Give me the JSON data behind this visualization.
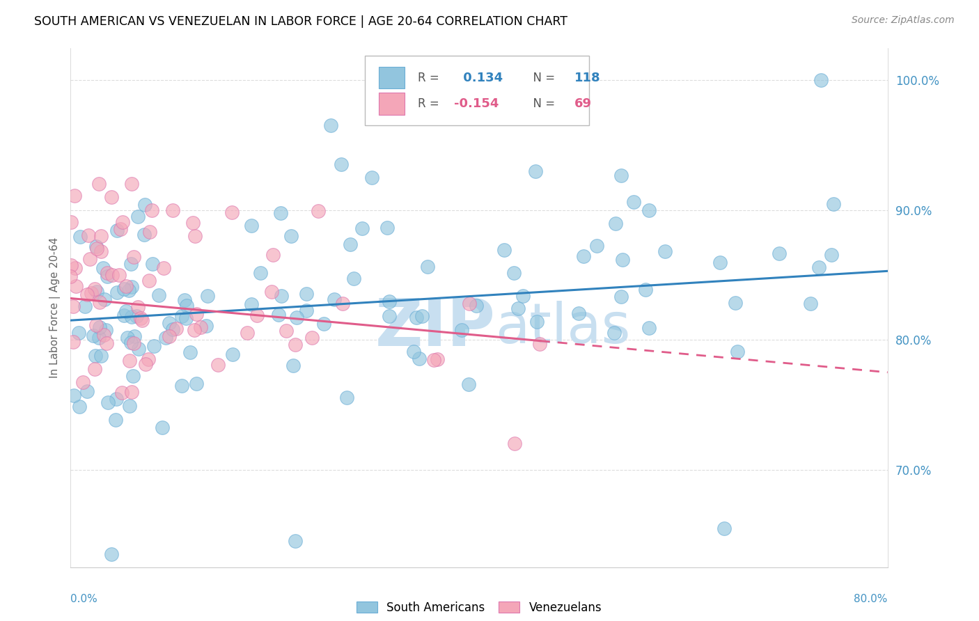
{
  "title": "SOUTH AMERICAN VS VENEZUELAN IN LABOR FORCE | AGE 20-64 CORRELATION CHART",
  "source": "Source: ZipAtlas.com",
  "ylabel": "In Labor Force | Age 20-64",
  "xlim": [
    0.0,
    0.8
  ],
  "ylim": [
    0.625,
    1.025
  ],
  "ytick_vals": [
    0.7,
    0.8,
    0.9,
    1.0
  ],
  "ytick_labels": [
    "70.0%",
    "80.0%",
    "90.0%",
    "100.0%"
  ],
  "blue_color": "#92c5de",
  "pink_color": "#f4a6b8",
  "blue_edge_color": "#6baed6",
  "pink_edge_color": "#de77ae",
  "blue_line_color": "#3182bd",
  "pink_line_color": "#e05c8a",
  "watermark_color": "#c8dff0",
  "tick_color": "#4393c3",
  "N_blue": 118,
  "N_pink": 69,
  "blue_trend_x0": 0.0,
  "blue_trend_x1": 0.8,
  "blue_trend_y0": 0.815,
  "blue_trend_y1": 0.853,
  "pink_trend_x0": 0.0,
  "pink_trend_x1": 0.8,
  "pink_trend_y0": 0.832,
  "pink_trend_y1": 0.775
}
